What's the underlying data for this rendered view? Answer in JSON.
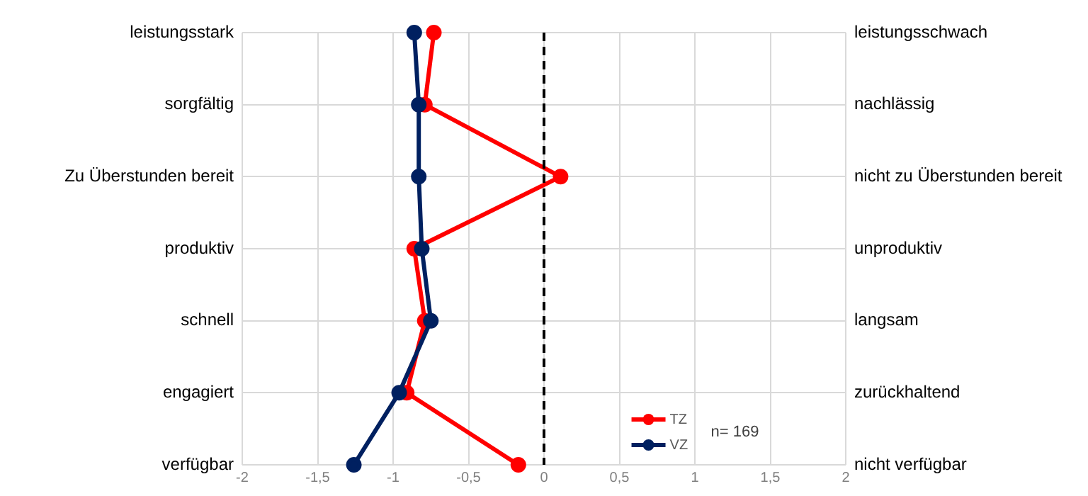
{
  "chart_data": {
    "type": "line",
    "orientation": "horizontal",
    "categories": [
      "leistungsstark",
      "sorgfältig",
      "Zu Überstunden bereit",
      "produktiv",
      "schnell",
      "engagiert",
      "verfügbar"
    ],
    "y2_categories": [
      "leistungsschwach",
      "nachlässig",
      "nicht zu Überstunden bereit",
      "unproduktiv",
      "langsam",
      "zurückhaltend",
      "nicht verfügbar"
    ],
    "series": [
      {
        "name": "TZ",
        "color": "#ff0000",
        "values": [
          -0.73,
          -0.79,
          0.11,
          -0.86,
          -0.79,
          -0.91,
          -0.17
        ]
      },
      {
        "name": "VZ",
        "color": "#002060",
        "values": [
          -0.86,
          -0.83,
          -0.83,
          -0.81,
          -0.75,
          -0.96,
          -1.26
        ]
      }
    ],
    "xlim": [
      -2,
      2
    ],
    "xticks": [
      -2,
      {
        "value": -1.5,
        "label": "-1,5"
      },
      -1,
      {
        "value": -0.5,
        "label": "-0,5"
      },
      0,
      {
        "value": 0.5,
        "label": "0,5"
      },
      1,
      {
        "value": 1.5,
        "label": "1,5"
      },
      2
    ],
    "ref_lines": [
      {
        "axis": "x",
        "value": 0,
        "color": "#000000",
        "line_style": "dashed"
      }
    ],
    "annotations": [
      "n= 169"
    ],
    "grid": true,
    "legend": "bottom right",
    "marker": "circle",
    "line_style": "solid"
  }
}
